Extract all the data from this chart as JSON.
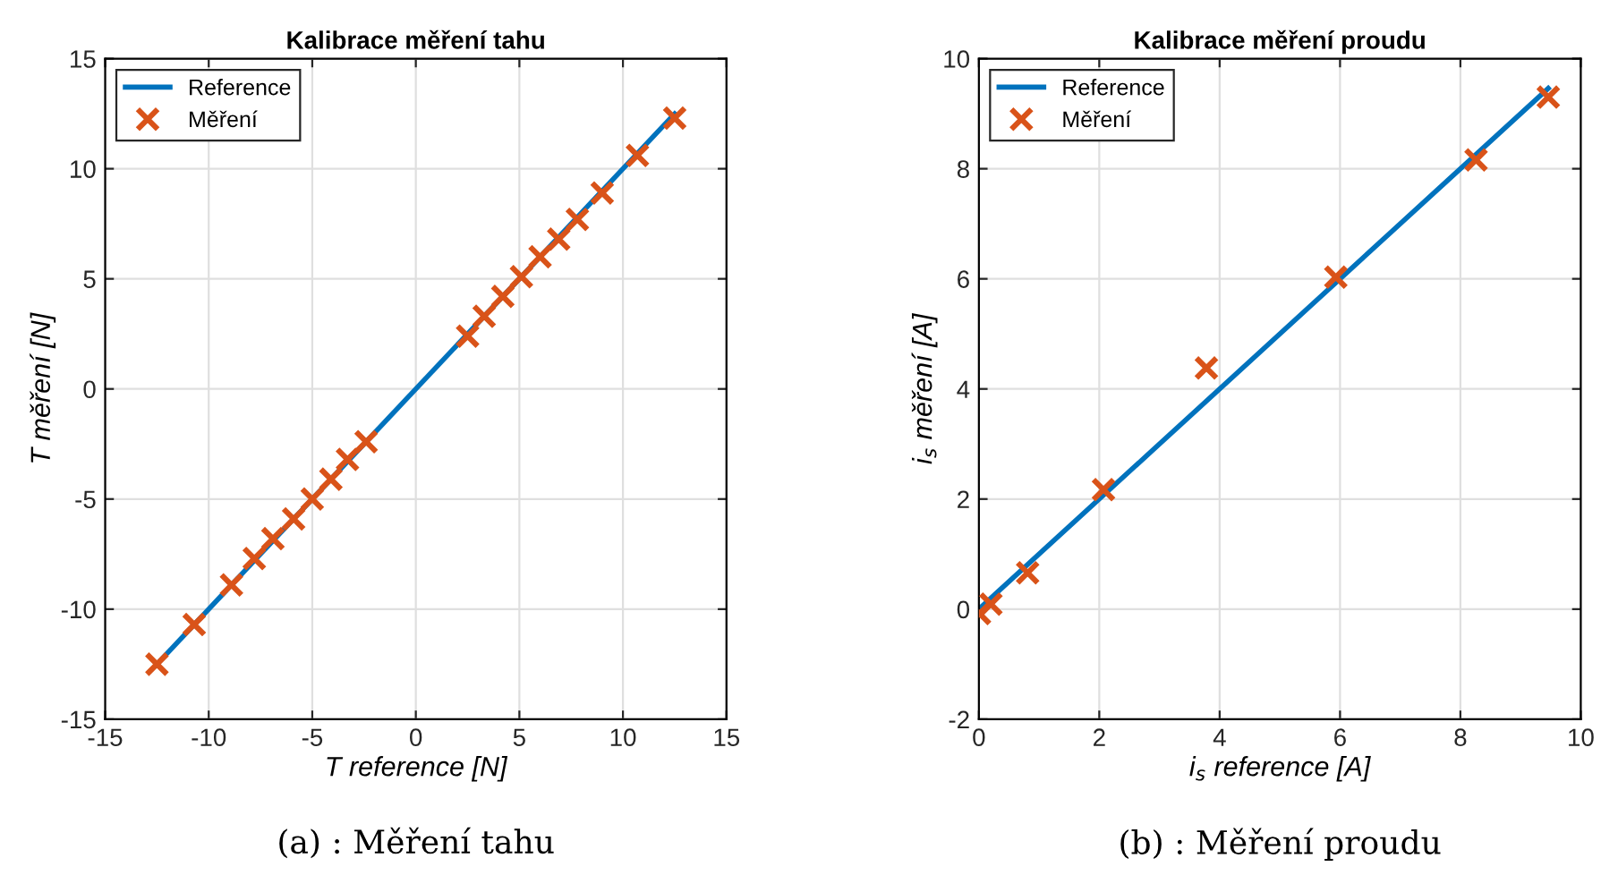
{
  "chart_data": [
    {
      "type": "scatter",
      "title": "Kalibrace měření tahu",
      "xlabel": "T reference [N]",
      "ylabel": "T měření [N]",
      "xlim": [
        -15,
        15
      ],
      "ylim": [
        -15,
        15
      ],
      "xticks": [
        -15,
        -10,
        -5,
        0,
        5,
        10,
        15
      ],
      "yticks": [
        -15,
        -10,
        -5,
        0,
        5,
        10,
        15
      ],
      "grid": true,
      "legend": "top left",
      "annotations": [
        "(a) : Měření tahu"
      ],
      "series": [
        {
          "name": "Reference",
          "type": "line",
          "color": "#0072bd",
          "marker": "none",
          "line_style": "solid",
          "x": [
            -12.5,
            12.5
          ],
          "values": [
            -12.5,
            12.5
          ]
        },
        {
          "name": "Měření",
          "color": "#d95319",
          "marker": "cross",
          "x": [
            -12.5,
            -10.7,
            -8.9,
            -7.8,
            -6.9,
            -5.9,
            -5.0,
            -4.1,
            -3.3,
            -2.4,
            2.5,
            3.3,
            4.2,
            5.1,
            6.0,
            6.9,
            7.8,
            9.0,
            10.7,
            12.5
          ],
          "values": [
            -12.5,
            -10.7,
            -8.9,
            -7.7,
            -6.8,
            -5.9,
            -5.0,
            -4.1,
            -3.2,
            -2.4,
            2.4,
            3.3,
            4.2,
            5.1,
            6.0,
            6.8,
            7.7,
            8.9,
            10.6,
            12.3
          ]
        }
      ]
    },
    {
      "type": "scatter",
      "title": "Kalibrace měření proudu",
      "xlabel": "i$_{s}$ reference [A]",
      "ylabel": "i$_{s}$ měření [A]",
      "xlim": [
        0,
        10
      ],
      "ylim": [
        -2,
        10
      ],
      "xticks": [
        0,
        2,
        4,
        6,
        8,
        10
      ],
      "yticks": [
        -2,
        0,
        2,
        4,
        6,
        8,
        10
      ],
      "grid": true,
      "legend": "top left",
      "annotations": [
        "(b) : Měření proudu"
      ],
      "series": [
        {
          "name": "Reference",
          "type": "line",
          "color": "#0072bd",
          "marker": "none",
          "line_style": "solid",
          "x": [
            0,
            9.46
          ],
          "values": [
            0,
            9.46
          ]
        },
        {
          "name": "Měření",
          "color": "#d95319",
          "marker": "cross",
          "x": [
            0.01,
            0.2,
            0.81,
            2.07,
            3.78,
            5.93,
            8.26,
            9.46
          ],
          "values": [
            -0.08,
            0.09,
            0.66,
            2.17,
            4.38,
            6.03,
            8.16,
            9.3
          ]
        }
      ]
    }
  ]
}
